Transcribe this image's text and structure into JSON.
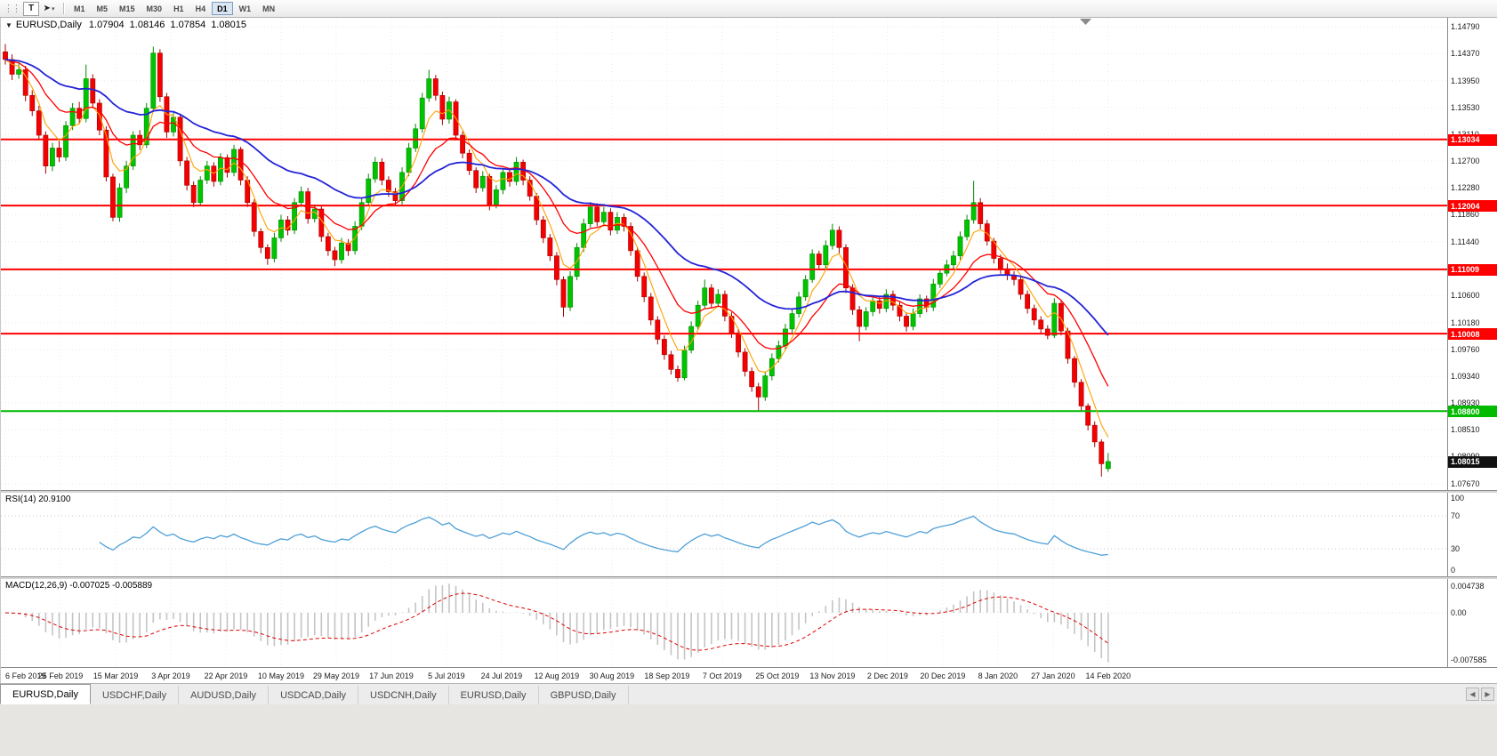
{
  "icons": {
    "grip": "⋮⋮",
    "collapse_arrow": "▼",
    "caret": "▾",
    "tab_left": "◀",
    "tab_right": "▶",
    "shift_marker": "triangle-down"
  },
  "toolbar": {
    "tool_buttons": [
      {
        "name": "text-tool",
        "glyph": "T"
      },
      {
        "name": "cursor-tool",
        "glyph": "➤"
      }
    ],
    "timeframes": [
      "M1",
      "M5",
      "M15",
      "M30",
      "H1",
      "H4",
      "D1",
      "W1",
      "MN"
    ],
    "active_timeframe": "D1"
  },
  "chart_header": {
    "symbol": "EURUSD,Daily",
    "open": "1.07904",
    "high": "1.08146",
    "low": "1.07854",
    "close": "1.08015"
  },
  "price_axis_ticks": [
    "1.14790",
    "1.14370",
    "1.13950",
    "1.13530",
    "1.13110",
    "1.12700",
    "1.12280",
    "1.11860",
    "1.11440",
    "1.11020",
    "1.10600",
    "1.10180",
    "1.09760",
    "1.09340",
    "1.08930",
    "1.08510",
    "1.08090",
    "1.07670"
  ],
  "levels": [
    {
      "value": 1.13034,
      "label": "1.13034",
      "color": "#FF0000",
      "type": "resistance"
    },
    {
      "value": 1.12004,
      "label": "1.12004",
      "color": "#FF0000",
      "type": "resistance"
    },
    {
      "value": 1.11009,
      "label": "1.11009",
      "color": "#FF0000",
      "type": "resistance"
    },
    {
      "value": 1.10008,
      "label": "1.10008",
      "color": "#FF0000",
      "type": "support"
    },
    {
      "value": 1.088,
      "label": "1.08800",
      "color": "#00BB00",
      "type": "support"
    }
  ],
  "current_price": {
    "value": 1.08015,
    "label": "1.08015"
  },
  "rsi_panel": {
    "label": "RSI(14) 20.9100",
    "ticks": [
      "100",
      "70",
      "30",
      "0"
    ],
    "level_lines": [
      70,
      30
    ],
    "current": 20.91
  },
  "macd_panel": {
    "label": "MACD(12,26,9) -0.007025 -0.005889",
    "ticks": [
      "0.004738",
      "0.00",
      "-0.007585"
    ],
    "current_macd": -0.007025,
    "current_signal": -0.005889
  },
  "tabs": [
    {
      "label": "EURUSD,Daily",
      "active": true
    },
    {
      "label": "USDCHF,Daily",
      "active": false
    },
    {
      "label": "AUDUSD,Daily",
      "active": false
    },
    {
      "label": "USDCAD,Daily",
      "active": false
    },
    {
      "label": "USDCNH,Daily",
      "active": false
    },
    {
      "label": "EURUSD,Daily",
      "active": false
    },
    {
      "label": "GBPUSD,Daily",
      "active": false
    }
  ],
  "colors": {
    "bull": "#00C400",
    "bull_edge": "#008A00",
    "bear": "#F40000",
    "bear_edge": "#A50000",
    "ma_fast": "#FFA000",
    "ma_mid": "#FF0000",
    "ma_slow": "#2424D8",
    "level_red": "#FF0000",
    "level_green": "#00BB00",
    "rsi_line": "#4FA0D8",
    "macd_hist": "#C4C4C4",
    "macd_signal": "#E00000",
    "current_badge": "#111111",
    "grid": "#EBEBEB"
  },
  "chart_data": {
    "type": "candlestick",
    "symbol": "EURUSD",
    "timeframe": "Daily",
    "title": "EURUSD,Daily 1.07904 1.08146 1.07854 1.08015",
    "y_range": [
      1.0757,
      1.1493
    ],
    "x_labels": [
      "6 Feb 2019",
      "25 Feb 2019",
      "15 Mar 2019",
      "3 Apr 2019",
      "22 Apr 2019",
      "10 May 2019",
      "29 May 2019",
      "17 Jun 2019",
      "5 Jul 2019",
      "24 Jul 2019",
      "12 Aug 2019",
      "30 Aug 2019",
      "18 Sep 2019",
      "7 Oct 2019",
      "25 Oct 2019",
      "13 Nov 2019",
      "2 Dec 2019",
      "20 Dec 2019",
      "8 Jan 2020",
      "27 Jan 2020",
      "14 Feb 2020"
    ],
    "horizontal_levels": [
      1.13034,
      1.12004,
      1.11009,
      1.10008,
      1.088
    ],
    "moving_averages": [
      {
        "type": "ema",
        "period": 5,
        "color": "#FFA000",
        "width": 1.1
      },
      {
        "type": "ema",
        "period": 13,
        "color": "#FF0000",
        "width": 1.3
      },
      {
        "type": "ema",
        "period": 34,
        "color": "#2424D8",
        "width": 1.8
      }
    ],
    "rsi": {
      "period": 14,
      "current": 20.91
    },
    "macd": {
      "fast": 12,
      "slow": 26,
      "signal": 9,
      "current_macd": -0.007025,
      "current_signal": -0.005889
    },
    "last_bar": {
      "open": 1.07904,
      "high": 1.08146,
      "low": 1.07854,
      "close": 1.08015
    },
    "candles": [
      [
        1.144,
        1.1452,
        1.142,
        1.1428
      ],
      [
        1.1428,
        1.1436,
        1.1396,
        1.1405
      ],
      [
        1.1405,
        1.1424,
        1.1398,
        1.1412
      ],
      [
        1.1412,
        1.1418,
        1.1363,
        1.1372
      ],
      [
        1.1372,
        1.138,
        1.134,
        1.1348
      ],
      [
        1.1348,
        1.1356,
        1.1302,
        1.131
      ],
      [
        1.131,
        1.1316,
        1.125,
        1.1262
      ],
      [
        1.1262,
        1.1298,
        1.1254,
        1.129
      ],
      [
        1.129,
        1.1301,
        1.1268,
        1.1276
      ],
      [
        1.1276,
        1.1332,
        1.127,
        1.1325
      ],
      [
        1.1325,
        1.136,
        1.1318,
        1.1352
      ],
      [
        1.1352,
        1.1362,
        1.1328,
        1.1336
      ],
      [
        1.1336,
        1.142,
        1.133,
        1.1398
      ],
      [
        1.1398,
        1.1405,
        1.1352,
        1.136
      ],
      [
        1.136,
        1.1366,
        1.131,
        1.1318
      ],
      [
        1.1318,
        1.1324,
        1.1238,
        1.1245
      ],
      [
        1.1245,
        1.125,
        1.1176,
        1.1182
      ],
      [
        1.1182,
        1.1235,
        1.1175,
        1.1228
      ],
      [
        1.1228,
        1.127,
        1.122,
        1.1262
      ],
      [
        1.1262,
        1.1316,
        1.1256,
        1.131
      ],
      [
        1.131,
        1.1318,
        1.1287,
        1.1295
      ],
      [
        1.1295,
        1.136,
        1.129,
        1.1352
      ],
      [
        1.1352,
        1.1448,
        1.1346,
        1.1438
      ],
      [
        1.1438,
        1.1444,
        1.1362,
        1.137
      ],
      [
        1.137,
        1.1376,
        1.1306,
        1.1315
      ],
      [
        1.1315,
        1.1346,
        1.1308,
        1.1338
      ],
      [
        1.1338,
        1.1342,
        1.1262,
        1.127
      ],
      [
        1.127,
        1.1276,
        1.1224,
        1.1232
      ],
      [
        1.1232,
        1.1238,
        1.1198,
        1.1205
      ],
      [
        1.1205,
        1.1246,
        1.12,
        1.124
      ],
      [
        1.124,
        1.127,
        1.1234,
        1.1262
      ],
      [
        1.1262,
        1.1268,
        1.123,
        1.1238
      ],
      [
        1.1238,
        1.1282,
        1.1232,
        1.1275
      ],
      [
        1.1275,
        1.128,
        1.1244,
        1.1252
      ],
      [
        1.1252,
        1.1295,
        1.1246,
        1.1288
      ],
      [
        1.1288,
        1.1292,
        1.1232,
        1.124
      ],
      [
        1.124,
        1.1246,
        1.1198,
        1.1205
      ],
      [
        1.1205,
        1.121,
        1.1152,
        1.116
      ],
      [
        1.116,
        1.1165,
        1.1126,
        1.1135
      ],
      [
        1.1135,
        1.114,
        1.1108,
        1.1118
      ],
      [
        1.1118,
        1.1158,
        1.1112,
        1.115
      ],
      [
        1.115,
        1.1186,
        1.1144,
        1.1178
      ],
      [
        1.1178,
        1.1184,
        1.1154,
        1.1162
      ],
      [
        1.1162,
        1.1212,
        1.1156,
        1.1205
      ],
      [
        1.1205,
        1.123,
        1.1198,
        1.1222
      ],
      [
        1.1222,
        1.1228,
        1.1172,
        1.118
      ],
      [
        1.118,
        1.1202,
        1.1174,
        1.1195
      ],
      [
        1.1195,
        1.12,
        1.1144,
        1.1152
      ],
      [
        1.1152,
        1.1158,
        1.1122,
        1.113
      ],
      [
        1.113,
        1.1136,
        1.1106,
        1.1116
      ],
      [
        1.1116,
        1.115,
        1.111,
        1.1142
      ],
      [
        1.1142,
        1.1148,
        1.1122,
        1.113
      ],
      [
        1.113,
        1.1176,
        1.1124,
        1.1168
      ],
      [
        1.1168,
        1.1212,
        1.1162,
        1.1205
      ],
      [
        1.1205,
        1.125,
        1.12,
        1.1242
      ],
      [
        1.1242,
        1.1276,
        1.1236,
        1.1268
      ],
      [
        1.1268,
        1.1274,
        1.1232,
        1.124
      ],
      [
        1.124,
        1.1246,
        1.1214,
        1.1222
      ],
      [
        1.1222,
        1.1228,
        1.12,
        1.1208
      ],
      [
        1.1208,
        1.126,
        1.1202,
        1.1252
      ],
      [
        1.1252,
        1.1298,
        1.1246,
        1.129
      ],
      [
        1.129,
        1.1328,
        1.1284,
        1.132
      ],
      [
        1.132,
        1.1376,
        1.1314,
        1.1368
      ],
      [
        1.1368,
        1.1412,
        1.1362,
        1.1398
      ],
      [
        1.1398,
        1.1404,
        1.1364,
        1.1372
      ],
      [
        1.1372,
        1.1378,
        1.1326,
        1.1335
      ],
      [
        1.1335,
        1.137,
        1.1328,
        1.1362
      ],
      [
        1.1362,
        1.1366,
        1.1302,
        1.131
      ],
      [
        1.131,
        1.1316,
        1.1274,
        1.1282
      ],
      [
        1.1282,
        1.1288,
        1.1248,
        1.1255
      ],
      [
        1.1255,
        1.126,
        1.122,
        1.1228
      ],
      [
        1.1228,
        1.1254,
        1.1222,
        1.1246
      ],
      [
        1.1246,
        1.125,
        1.1193,
        1.1202
      ],
      [
        1.1202,
        1.1232,
        1.1196,
        1.1225
      ],
      [
        1.1225,
        1.1258,
        1.1218,
        1.1252
      ],
      [
        1.1252,
        1.1258,
        1.123,
        1.1238
      ],
      [
        1.1238,
        1.1276,
        1.1232,
        1.1268
      ],
      [
        1.1268,
        1.1272,
        1.1232,
        1.124
      ],
      [
        1.124,
        1.1246,
        1.1208,
        1.1215
      ],
      [
        1.1215,
        1.122,
        1.117,
        1.1178
      ],
      [
        1.1178,
        1.1184,
        1.1142,
        1.115
      ],
      [
        1.115,
        1.1156,
        1.1114,
        1.1122
      ],
      [
        1.1122,
        1.1128,
        1.1076,
        1.1085
      ],
      [
        1.1085,
        1.109,
        1.1027,
        1.1042
      ],
      [
        1.1042,
        1.1098,
        1.1036,
        1.109
      ],
      [
        1.109,
        1.1142,
        1.1084,
        1.1135
      ],
      [
        1.1135,
        1.118,
        1.1128,
        1.1172
      ],
      [
        1.1172,
        1.1206,
        1.1166,
        1.1198
      ],
      [
        1.1198,
        1.1204,
        1.1168,
        1.1175
      ],
      [
        1.1175,
        1.1198,
        1.1168,
        1.119
      ],
      [
        1.119,
        1.1196,
        1.1154,
        1.1162
      ],
      [
        1.1162,
        1.119,
        1.1156,
        1.1182
      ],
      [
        1.1182,
        1.1188,
        1.116,
        1.1168
      ],
      [
        1.1168,
        1.1174,
        1.1122,
        1.113
      ],
      [
        1.113,
        1.1136,
        1.1082,
        1.109
      ],
      [
        1.109,
        1.1096,
        1.105,
        1.1058
      ],
      [
        1.1058,
        1.1064,
        1.1014,
        1.1022
      ],
      [
        1.1022,
        1.1028,
        1.0984,
        1.0992
      ],
      [
        1.0992,
        1.0998,
        1.096,
        1.0968
      ],
      [
        1.0968,
        1.0974,
        1.0937,
        1.0945
      ],
      [
        1.0945,
        1.0951,
        1.0926,
        1.0932
      ],
      [
        1.0932,
        1.0982,
        1.0928,
        1.0975
      ],
      [
        1.0975,
        1.102,
        1.097,
        1.1012
      ],
      [
        1.1012,
        1.1052,
        1.1006,
        1.1045
      ],
      [
        1.1045,
        1.1085,
        1.104,
        1.1072
      ],
      [
        1.1072,
        1.1078,
        1.104,
        1.1048
      ],
      [
        1.1048,
        1.107,
        1.1042,
        1.1062
      ],
      [
        1.1062,
        1.1068,
        1.102,
        1.1028
      ],
      [
        1.1028,
        1.1034,
        1.0994,
        1.1002
      ],
      [
        1.1002,
        1.1008,
        1.0964,
        1.0972
      ],
      [
        1.0972,
        1.0978,
        1.0934,
        1.0942
      ],
      [
        1.0942,
        1.0948,
        1.091,
        1.0918
      ],
      [
        1.0918,
        1.0924,
        1.0879,
        1.0902
      ],
      [
        1.0902,
        1.0942,
        1.0896,
        1.0935
      ],
      [
        1.0935,
        1.097,
        1.0928,
        1.0962
      ],
      [
        1.0962,
        1.099,
        1.0956,
        1.0982
      ],
      [
        1.0982,
        1.1016,
        1.0976,
        1.1008
      ],
      [
        1.1008,
        1.104,
        1.1002,
        1.1032
      ],
      [
        1.1032,
        1.1066,
        1.1026,
        1.1058
      ],
      [
        1.1058,
        1.1092,
        1.1052,
        1.1085
      ],
      [
        1.1085,
        1.1132,
        1.108,
        1.1125
      ],
      [
        1.1125,
        1.113,
        1.11,
        1.1108
      ],
      [
        1.1108,
        1.1146,
        1.1102,
        1.1138
      ],
      [
        1.1138,
        1.1172,
        1.1132,
        1.1162
      ],
      [
        1.1162,
        1.1168,
        1.1126,
        1.1135
      ],
      [
        1.1135,
        1.114,
        1.1064,
        1.1072
      ],
      [
        1.1072,
        1.1078,
        1.103,
        1.1038
      ],
      [
        1.1038,
        1.1044,
        1.0989,
        1.1012
      ],
      [
        1.1012,
        1.1042,
        1.1006,
        1.1035
      ],
      [
        1.1035,
        1.106,
        1.1028,
        1.1052
      ],
      [
        1.1052,
        1.1058,
        1.1032,
        1.104
      ],
      [
        1.104,
        1.107,
        1.1034,
        1.1062
      ],
      [
        1.1062,
        1.1068,
        1.1037,
        1.1045
      ],
      [
        1.1045,
        1.105,
        1.102,
        1.1028
      ],
      [
        1.1028,
        1.1034,
        1.1004,
        1.1012
      ],
      [
        1.1012,
        1.104,
        1.1006,
        1.1032
      ],
      [
        1.1032,
        1.1062,
        1.1026,
        1.1055
      ],
      [
        1.1055,
        1.106,
        1.1034,
        1.1042
      ],
      [
        1.1042,
        1.1086,
        1.1036,
        1.1078
      ],
      [
        1.1078,
        1.1102,
        1.1072,
        1.1095
      ],
      [
        1.1095,
        1.1116,
        1.109,
        1.1108
      ],
      [
        1.1108,
        1.113,
        1.1102,
        1.1122
      ],
      [
        1.1122,
        1.116,
        1.1116,
        1.1152
      ],
      [
        1.1152,
        1.1186,
        1.1146,
        1.1178
      ],
      [
        1.1178,
        1.1239,
        1.1172,
        1.1205
      ],
      [
        1.1205,
        1.1212,
        1.1164,
        1.1172
      ],
      [
        1.1172,
        1.1178,
        1.1138,
        1.1145
      ],
      [
        1.1145,
        1.115,
        1.111,
        1.1118
      ],
      [
        1.1118,
        1.1124,
        1.1094,
        1.1102
      ],
      [
        1.1102,
        1.111,
        1.1084,
        1.1092
      ],
      [
        1.1092,
        1.1098,
        1.1076,
        1.1085
      ],
      [
        1.1085,
        1.109,
        1.1054,
        1.1062
      ],
      [
        1.1062,
        1.1068,
        1.1032,
        1.104
      ],
      [
        1.104,
        1.1046,
        1.1014,
        1.1022
      ],
      [
        1.1022,
        1.1028,
        1.1,
        1.1008
      ],
      [
        1.1008,
        1.1014,
        1.0992,
        1.0998
      ],
      [
        1.0998,
        1.1056,
        1.0994,
        1.1048
      ],
      [
        1.1048,
        1.1052,
        1.0998,
        1.1005
      ],
      [
        1.1005,
        1.101,
        1.0954,
        1.0962
      ],
      [
        1.0962,
        1.0966,
        1.0917,
        1.0925
      ],
      [
        1.0925,
        1.093,
        1.088,
        1.0888
      ],
      [
        1.0888,
        1.0892,
        1.085,
        1.0858
      ],
      [
        1.0858,
        1.0864,
        1.0824,
        1.0832
      ],
      [
        1.0832,
        1.0836,
        1.0778,
        1.0798
      ],
      [
        1.07904,
        1.08146,
        1.07854,
        1.08015
      ]
    ]
  }
}
